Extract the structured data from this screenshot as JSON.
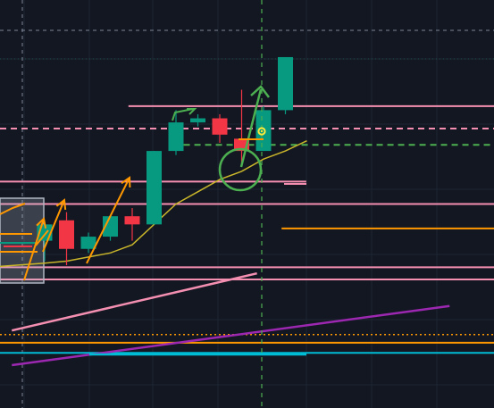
{
  "theme": {
    "background": "#131722",
    "grid": "#1e2533",
    "bull": "#089981",
    "bear": "#f23645",
    "pink": "#f48fb1",
    "orange": "#ff9800",
    "ma_yellow": "#c9b52a",
    "purple": "#9c27b0",
    "cyan": "#00bcd4",
    "green": "#4caf50",
    "crosshair": "#7c8596"
  },
  "chart_data": {
    "type": "candlestick",
    "y_range": [
      0,
      100
    ],
    "candles": [
      {
        "o": 41,
        "h": 46,
        "l": 36,
        "c": 45
      },
      {
        "o": 46,
        "h": 48,
        "l": 35,
        "c": 39
      },
      {
        "o": 39,
        "h": 43,
        "l": 38,
        "c": 42
      },
      {
        "o": 42,
        "h": 47,
        "l": 41,
        "c": 47
      },
      {
        "o": 47,
        "h": 49,
        "l": 41,
        "c": 45
      },
      {
        "o": 45,
        "h": 63,
        "l": 45,
        "c": 63
      },
      {
        "o": 63,
        "h": 73,
        "l": 62,
        "c": 70
      },
      {
        "o": 70,
        "h": 72,
        "l": 69,
        "c": 71
      },
      {
        "o": 71,
        "h": 72,
        "l": 65,
        "c": 67
      },
      {
        "o": 66,
        "h": 78,
        "l": 60,
        "c": 63
      },
      {
        "o": 63,
        "h": 74,
        "l": 63,
        "c": 73
      },
      {
        "o": 73,
        "h": 86,
        "l": 72,
        "c": 86
      }
    ],
    "moving_average": [
      35.5,
      36,
      37,
      38,
      40,
      45,
      50,
      53,
      56,
      58,
      61,
      63
    ],
    "horizontal_levels": [
      {
        "y": 74.0,
        "color": "pink",
        "style": "solid",
        "from": 0.26,
        "to": 1.0
      },
      {
        "y": 68.5,
        "color": "pink",
        "style": "dashed",
        "from": 0.0,
        "to": 1.0
      },
      {
        "y": 64.5,
        "color": "green",
        "style": "dashed",
        "from": 0.35,
        "to": 1.0
      },
      {
        "y": 55.5,
        "color": "pink",
        "style": "solid",
        "from": 0.0,
        "to": 0.62
      },
      {
        "y": 50.0,
        "color": "pink",
        "style": "solid",
        "from": 0.0,
        "to": 1.0
      },
      {
        "y": 44.0,
        "color": "orange",
        "style": "solid",
        "from": 0.57,
        "to": 1.0
      },
      {
        "y": 34.5,
        "color": "pink",
        "style": "solid",
        "from": 0.0,
        "to": 1.0
      },
      {
        "y": 31.5,
        "color": "pink",
        "style": "solid",
        "from": 0.0,
        "to": 1.0
      },
      {
        "y": 18.0,
        "color": "orange",
        "style": "dotted",
        "from": 0.0,
        "to": 1.0
      },
      {
        "y": 16.0,
        "color": "orange",
        "style": "solid",
        "from": 0.0,
        "to": 1.0
      },
      {
        "y": 13.5,
        "color": "cyan",
        "style": "solid",
        "from": 0.0,
        "to": 1.0
      }
    ],
    "trend_lines": [
      {
        "color": "pink",
        "points": [
          [
            -1.5,
            19
          ],
          [
            9.7,
            33
          ]
        ]
      },
      {
        "color": "purple",
        "points": [
          [
            -1.5,
            10.5
          ],
          [
            18.5,
            25
          ]
        ]
      }
    ],
    "grid": true,
    "legend": "none"
  }
}
